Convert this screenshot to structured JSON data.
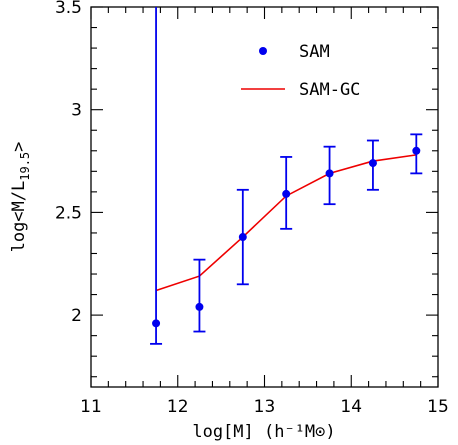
{
  "chart_data": {
    "type": "scatter",
    "xlabel": "log[M] (h⁻¹M⊙)",
    "ylabel_parts": {
      "base": "log<M/L",
      "subscript": "19.5",
      "close": ">"
    },
    "xlim": [
      11,
      15
    ],
    "ylim": [
      1.65,
      3.5
    ],
    "x_ticks": [
      "11",
      "12",
      "13",
      "14",
      "15"
    ],
    "y_ticks": [
      "2",
      "2.5",
      "3",
      "3.5"
    ],
    "grid": false,
    "legend_position": "top-right",
    "series": [
      {
        "name": "SAM",
        "kind": "points_with_errorbars",
        "color": "#0000ee",
        "x": [
          11.75,
          12.25,
          12.75,
          13.25,
          13.75,
          14.25,
          14.75
        ],
        "y": [
          1.96,
          2.04,
          2.38,
          2.59,
          2.69,
          2.74,
          2.8
        ],
        "y_low": [
          1.86,
          1.92,
          2.15,
          2.42,
          2.54,
          2.61,
          2.69
        ],
        "y_high": [
          3.5,
          2.27,
          2.61,
          2.77,
          2.82,
          2.85,
          2.88
        ]
      },
      {
        "name": "SAM-GC",
        "kind": "line",
        "color": "#ee0000",
        "x": [
          11.75,
          12.25,
          12.75,
          13.25,
          13.75,
          14.25,
          14.75
        ],
        "y": [
          2.12,
          2.19,
          2.38,
          2.58,
          2.69,
          2.75,
          2.78
        ]
      }
    ]
  }
}
